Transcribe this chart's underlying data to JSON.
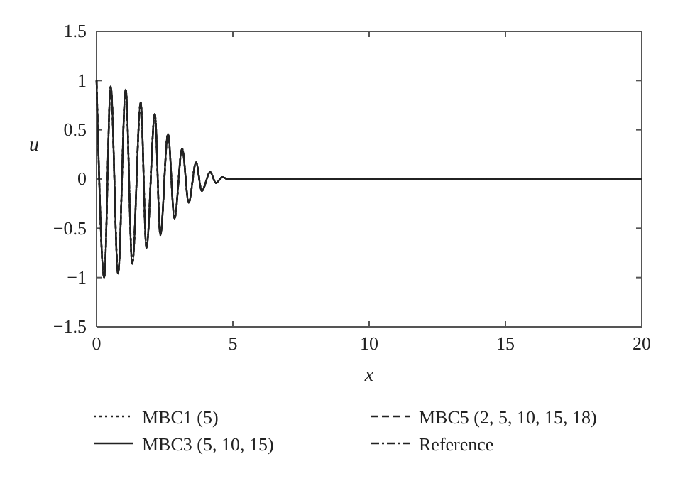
{
  "chart_data": {
    "type": "line",
    "xlabel": "x",
    "ylabel": "u",
    "x": [
      0,
      0.28,
      0.52,
      0.79,
      1.07,
      1.31,
      1.62,
      1.83,
      2.14,
      2.34,
      2.62,
      2.86,
      3.14,
      3.38,
      3.65,
      3.86,
      4.17,
      4.38,
      4.62,
      4.79,
      20
    ],
    "series": [
      {
        "name": "MBC1 (5)",
        "color": "#222222",
        "line_style": "dotted",
        "values": [
          1,
          -1,
          0.94,
          -0.96,
          0.91,
          -0.86,
          0.78,
          -0.7,
          0.66,
          -0.57,
          0.46,
          -0.4,
          0.31,
          -0.24,
          0.17,
          -0.12,
          0.07,
          -0.04,
          0.02,
          0,
          0
        ]
      },
      {
        "name": "MBC3 (5, 10, 15)",
        "color": "#222222",
        "line_style": "solid",
        "values": [
          1,
          -1,
          0.94,
          -0.96,
          0.91,
          -0.86,
          0.78,
          -0.7,
          0.66,
          -0.57,
          0.46,
          -0.4,
          0.31,
          -0.24,
          0.17,
          -0.12,
          0.07,
          -0.04,
          0.02,
          0,
          0
        ]
      },
      {
        "name": "MBC5 (2, 5, 10, 15, 18)",
        "color": "#222222",
        "line_style": "dashed",
        "values": [
          1,
          -1,
          0.94,
          -0.96,
          0.91,
          -0.86,
          0.78,
          -0.7,
          0.66,
          -0.57,
          0.46,
          -0.4,
          0.31,
          -0.24,
          0.17,
          -0.12,
          0.07,
          -0.04,
          0.02,
          0,
          0
        ]
      },
      {
        "name": "Reference",
        "color": "#222222",
        "line_style": "dashdot",
        "values": [
          1,
          -1,
          0.94,
          -0.96,
          0.91,
          -0.86,
          0.78,
          -0.7,
          0.66,
          -0.57,
          0.46,
          -0.4,
          0.31,
          -0.24,
          0.17,
          -0.12,
          0.07,
          -0.04,
          0.02,
          0,
          0
        ]
      }
    ],
    "xlim": [
      0,
      20
    ],
    "xticks": [
      0,
      5,
      10,
      15,
      20
    ],
    "ylim": [
      -1.5,
      1.5
    ],
    "yticks": [
      {
        "value": -1.5,
        "label": "−1.5"
      },
      {
        "value": -1,
        "label": "−1"
      },
      {
        "value": -0.5,
        "label": "−0.5"
      },
      0,
      0.5,
      1,
      1.5
    ],
    "grid": false,
    "legend": "bottom"
  }
}
